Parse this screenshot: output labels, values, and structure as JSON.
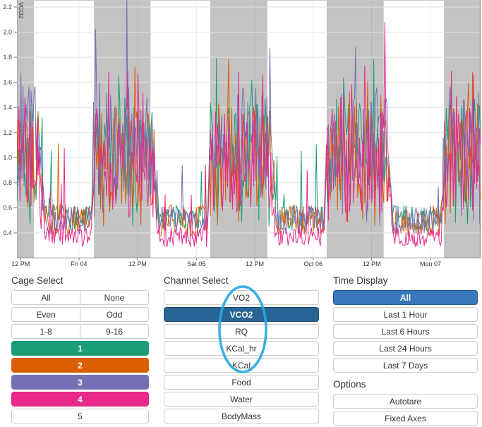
{
  "chart_data": {
    "type": "line",
    "title": "",
    "xlabel": "",
    "ylabel": "VCO2",
    "ylim": [
      0.2,
      2.25
    ],
    "y_ticks": [
      0.4,
      0.6,
      0.8,
      1.0,
      1.2,
      1.4,
      1.6,
      1.8,
      2.0,
      2.2
    ],
    "x_ticks": [
      {
        "label": "12 PM",
        "f": 0.008
      },
      {
        "label": "Fri 04",
        "f": 0.134
      },
      {
        "label": "12 PM",
        "f": 0.26
      },
      {
        "label": "Sat 05",
        "f": 0.387
      },
      {
        "label": "12 PM",
        "f": 0.513
      },
      {
        "label": "Oct 06",
        "f": 0.639
      },
      {
        "label": "12 PM",
        "f": 0.765
      },
      {
        "label": "Mon 07",
        "f": 0.892
      }
    ],
    "grid": true,
    "legend": "none",
    "night_band_color": "#c3c3c3",
    "night_bands": [
      [
        0.0,
        0.0365
      ],
      [
        0.166,
        0.288
      ],
      [
        0.417,
        0.54
      ],
      [
        0.668,
        0.791
      ],
      [
        0.921,
        1.0
      ]
    ],
    "activity_windows": [
      [
        0.0,
        0.045
      ],
      [
        0.166,
        0.292
      ],
      [
        0.417,
        0.545
      ],
      [
        0.668,
        0.796
      ],
      [
        0.921,
        1.02
      ]
    ],
    "series": [
      {
        "name": "Cage 1",
        "color": "#1b9e77",
        "day_mean": 0.52,
        "day_amp": 0.1,
        "night_mean": 1.05,
        "night_amp": 0.42
      },
      {
        "name": "Cage 2",
        "color": "#d95f02",
        "day_mean": 0.5,
        "day_amp": 0.13,
        "night_mean": 1.02,
        "night_amp": 0.42
      },
      {
        "name": "Cage 3",
        "color": "#7570b3",
        "day_mean": 0.5,
        "day_amp": 0.12,
        "night_mean": 1.15,
        "night_amp": 0.45
      },
      {
        "name": "Cage 4",
        "color": "#e7298a",
        "day_mean": 0.37,
        "day_amp": 0.08,
        "night_mean": 0.98,
        "night_amp": 0.42
      }
    ],
    "spikes": [
      {
        "series": 2,
        "t": 0.17,
        "v": 2.02
      },
      {
        "series": 2,
        "t": 0.237,
        "v": 2.38
      },
      {
        "series": 3,
        "t": 0.793,
        "v": 2.08
      }
    ],
    "seed": 7,
    "note": "Noisy circadian metabolic telemetry; values estimated from pixels (high during shaded dark phases ~0.6-1.8, low during light phases ~0.3-0.6)"
  },
  "cage_select": {
    "header": "Cage Select",
    "pair_rows": [
      [
        "All",
        "None"
      ],
      [
        "Even",
        "Odd"
      ],
      [
        "1-8",
        "9-16"
      ]
    ],
    "cage_buttons": [
      {
        "label": "1",
        "color": "#1b9e77"
      },
      {
        "label": "2",
        "color": "#d95f02"
      },
      {
        "label": "3",
        "color": "#7570b3"
      },
      {
        "label": "4",
        "color": "#e7298a"
      },
      {
        "label": "5",
        "color": ""
      }
    ]
  },
  "channel_select": {
    "header": "Channel Select",
    "buttons": [
      "VO2",
      "VCO2",
      "RQ",
      "KCal_hr",
      "KCal",
      "Food",
      "Water",
      "BodyMass"
    ],
    "selected": "VCO2",
    "selected_color": "#2a6496"
  },
  "time_display": {
    "header": "Time Display",
    "buttons": [
      "All",
      "Last 1 Hour",
      "Last 6 Hours",
      "Last 24 Hours",
      "Last 7 Days"
    ],
    "selected": "All",
    "selected_color": "#3879bd"
  },
  "options": {
    "header": "Options",
    "buttons": [
      "Autotare",
      "Fixed Axes"
    ]
  },
  "annotation": {
    "shape": "ellipse",
    "color": "#29a8e0"
  }
}
